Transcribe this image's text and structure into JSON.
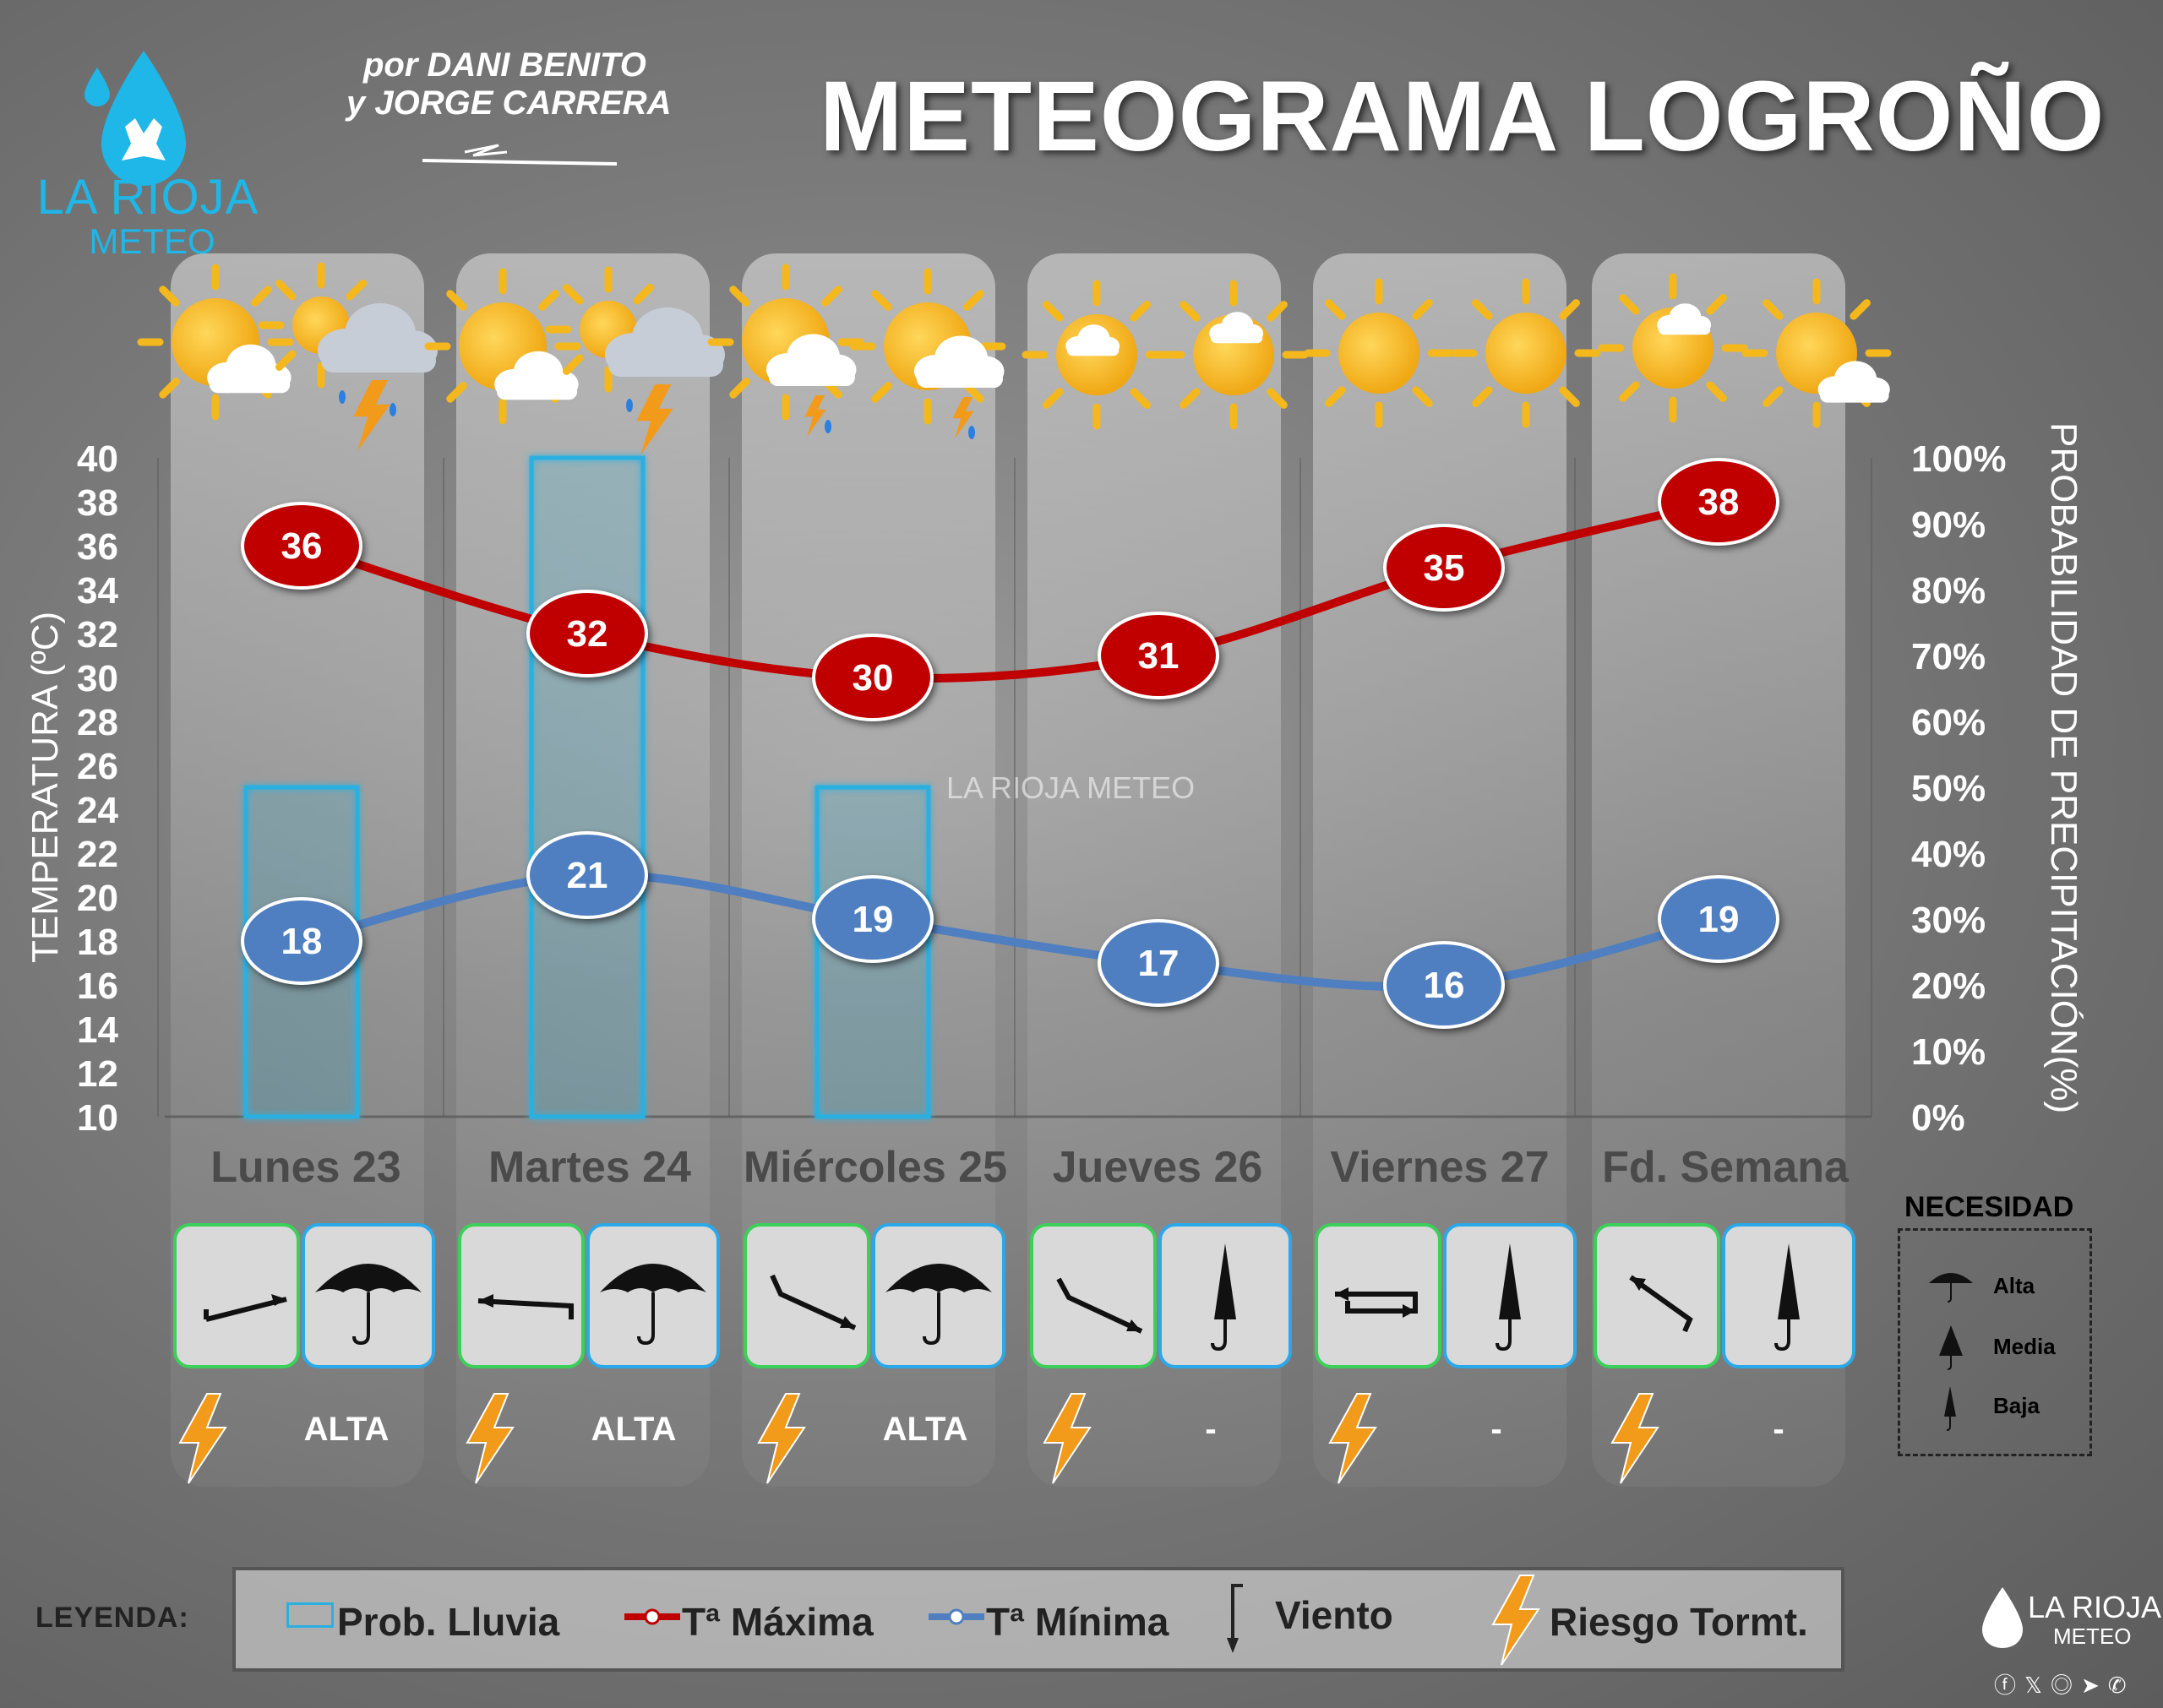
{
  "brand": {
    "logo_line1": "LA RIOJA",
    "logo_line2": "METEO",
    "credit_line1": "por DANI BENITO",
    "credit_line2": "y JORGE CARRERA",
    "watermark": "LA RIOJA METEO"
  },
  "title": "METEOGRAMA LOGROÑO",
  "chart_data": {
    "type": "line",
    "categories": [
      "Lunes 23",
      "Martes 24",
      "Miércoles 25",
      "Jueves 26",
      "Viernes 27",
      "Fd. Semana"
    ],
    "series": [
      {
        "name": "Tª Máxima",
        "values": [
          36,
          32,
          30,
          31,
          35,
          38
        ],
        "color": "#c00000"
      },
      {
        "name": "Tª Mínima",
        "values": [
          18,
          21,
          19,
          17,
          16,
          19
        ],
        "color": "#4f7fc0"
      },
      {
        "name": "Prob. Lluvia",
        "values": [
          50,
          100,
          50,
          0,
          0,
          0
        ],
        "color": "#2ab0e0",
        "axis": "right",
        "type": "bar"
      }
    ],
    "ylabel": "TEMPERATURA (ºC)",
    "ylabel_right": "PROBABILIDAD DE PRECIPITACIÓN(%)",
    "ylim": [
      10,
      40
    ],
    "yticks": [
      10,
      12,
      14,
      16,
      18,
      20,
      22,
      24,
      26,
      28,
      30,
      32,
      34,
      36,
      38,
      40
    ],
    "ylim_right": [
      0,
      100
    ],
    "yticks_right": [
      "0%",
      "10%",
      "20%",
      "30%",
      "40%",
      "50%",
      "60%",
      "70%",
      "80%",
      "90%",
      "100%"
    ]
  },
  "days": [
    {
      "label": "Lunes 23",
      "wind": "wind-arrow-ne-icon",
      "umbrella": "Alta",
      "storm": "ALTA"
    },
    {
      "label": "Martes 24",
      "wind": "wind-arrow-w-icon",
      "umbrella": "Alta",
      "storm": "ALTA"
    },
    {
      "label": "Miércoles 25",
      "wind": "wind-arrow-se-icon",
      "umbrella": "Alta",
      "storm": "ALTA"
    },
    {
      "label": "Jueves 26",
      "wind": "wind-arrow-se-icon",
      "umbrella": "Baja",
      "storm": "-"
    },
    {
      "label": "Viernes 27",
      "wind": "wind-variable-icon",
      "umbrella": "Baja",
      "storm": "-"
    },
    {
      "label": "Fd. Semana",
      "wind": "wind-arrow-nw-icon",
      "umbrella": "Baja",
      "storm": "-"
    }
  ],
  "necesidad": {
    "title": "NECESIDAD",
    "alta": "Alta",
    "media": "Media",
    "baja": "Baja"
  },
  "legend": {
    "label": "LEYENDA:",
    "prob_lluvia": "Prob. Lluvia",
    "t_max": "Tª Máxima",
    "t_min": "Tª Mínima",
    "viento": "Viento",
    "riesgo": "Riesgo Tormt."
  },
  "colors": {
    "max": "#c00000",
    "min": "#4f7fc0",
    "bar": "#2ab0e0",
    "sun": "#f5b81c",
    "bolt": "#f29a1a"
  }
}
